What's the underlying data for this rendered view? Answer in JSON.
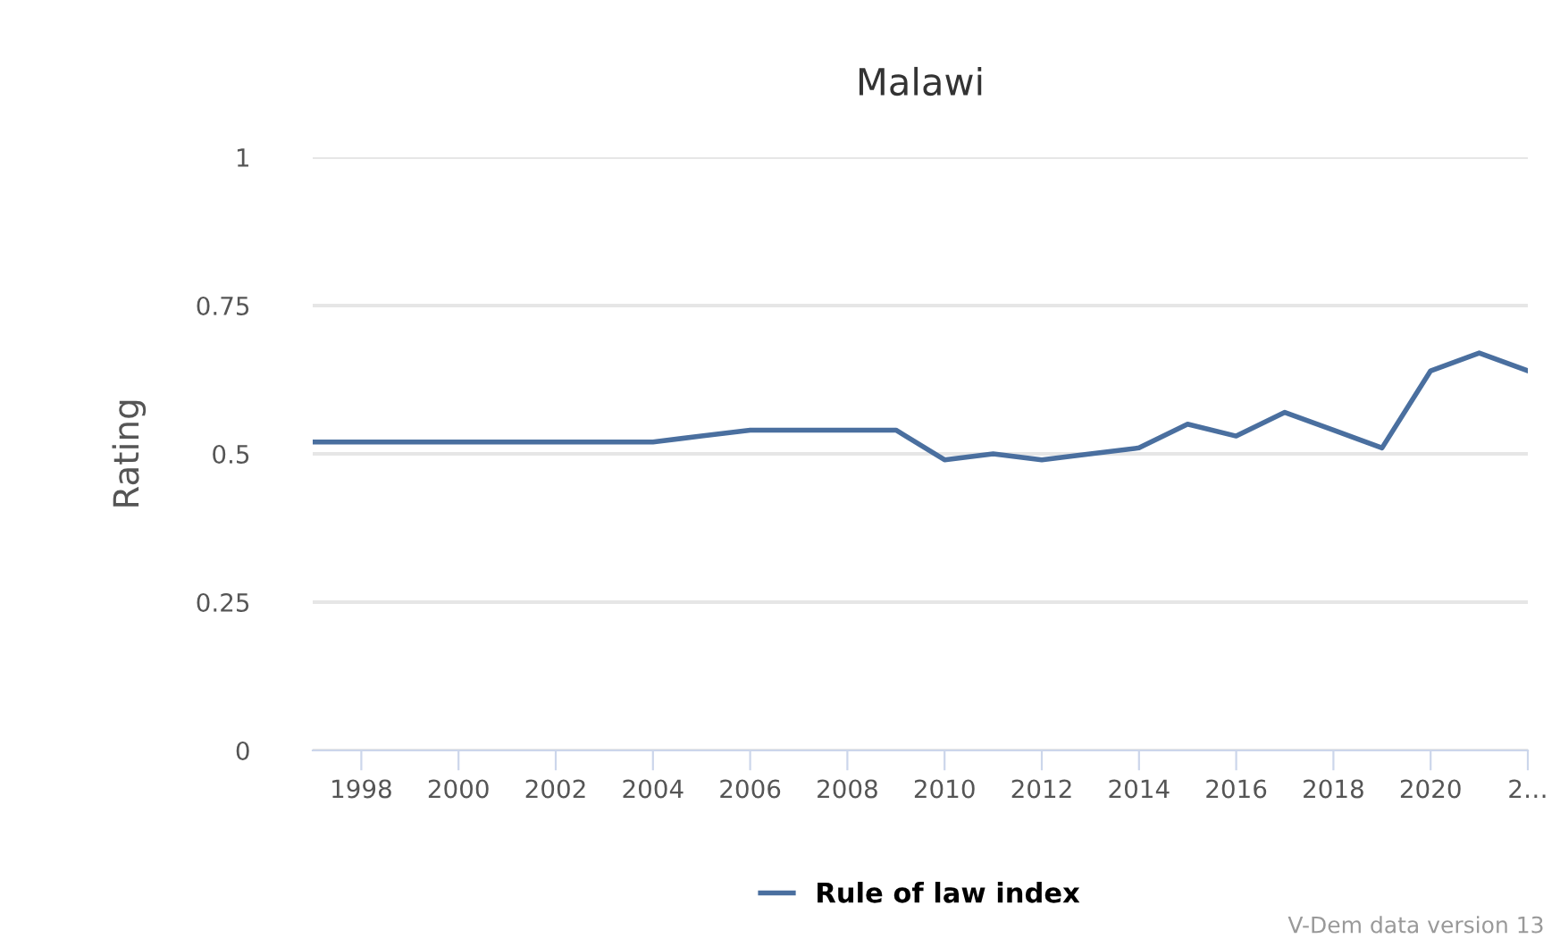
{
  "chart_data": {
    "type": "line",
    "title": "Malawi",
    "ylabel": "Rating",
    "x": [
      1997,
      1998,
      1999,
      2000,
      2001,
      2002,
      2003,
      2004,
      2005,
      2006,
      2007,
      2008,
      2009,
      2010,
      2011,
      2012,
      2013,
      2014,
      2015,
      2016,
      2017,
      2018,
      2019,
      2020,
      2021,
      2022
    ],
    "series": [
      {
        "name": "Rule of law index",
        "color": "#4a6f9f",
        "values": [
          0.52,
          0.52,
          0.52,
          0.52,
          0.52,
          0.52,
          0.52,
          0.52,
          0.53,
          0.54,
          0.54,
          0.54,
          0.54,
          0.49,
          0.5,
          0.49,
          0.5,
          0.51,
          0.55,
          0.53,
          0.57,
          0.54,
          0.51,
          0.64,
          0.67,
          0.64
        ]
      }
    ],
    "xlim": [
      1997,
      2022
    ],
    "xticks": [
      1998,
      2000,
      2002,
      2004,
      2006,
      2008,
      2010,
      2012,
      2014,
      2016,
      2018,
      2020,
      {
        "value": 2022,
        "label": "2…"
      }
    ],
    "ylim": [
      0,
      1
    ],
    "yticks": [
      0,
      0.25,
      0.5,
      0.75,
      1
    ],
    "grid": "y",
    "legend": "bottom",
    "marker": "none",
    "line_style": "solid",
    "annotations": [
      "V-Dem data version 13"
    ]
  }
}
